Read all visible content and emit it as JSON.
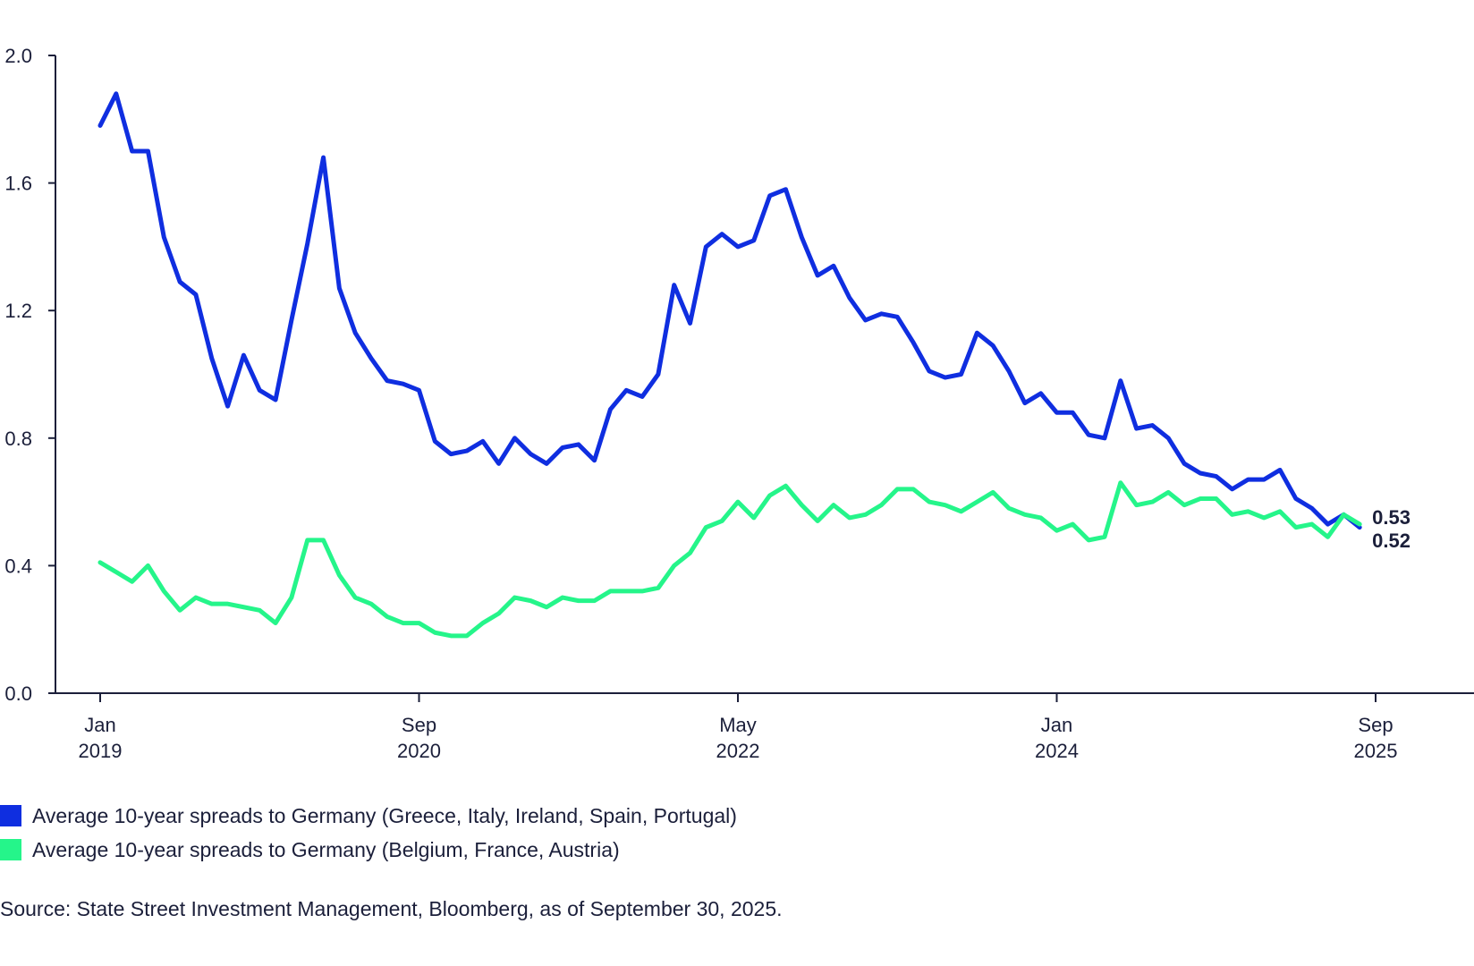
{
  "chart_data": {
    "type": "line",
    "title": "",
    "xlabel": "",
    "ylabel": "",
    "ylim": [
      0.0,
      2.0
    ],
    "xlim_months": [
      -3,
      84
    ],
    "y_ticks": [
      {
        "value": 0.0,
        "label": "0.0"
      },
      {
        "value": 0.4,
        "label": "0.4"
      },
      {
        "value": 0.8,
        "label": "0.8"
      },
      {
        "value": 1.2,
        "label": "1.2"
      },
      {
        "value": 1.6,
        "label": "1.6"
      },
      {
        "value": 2.0,
        "label": "2.0"
      }
    ],
    "x_ticks": [
      {
        "month_index": 0,
        "month": "Jan",
        "year": "2019"
      },
      {
        "month_index": 20,
        "month": "Sep",
        "year": "2020"
      },
      {
        "month_index": 40,
        "month": "May",
        "year": "2022"
      },
      {
        "month_index": 60,
        "month": "Jan",
        "year": "2024"
      },
      {
        "month_index": 80,
        "month": "Sep",
        "year": "2025"
      }
    ],
    "grid": false,
    "x_start": "Jan 2019",
    "x_step": "monthly",
    "series": [
      {
        "name": "Average 10-year spreads to Germany (Greece, Italy, Ireland, Spain, Portugal)",
        "color": "#0f2ee0",
        "end_label": "0.52",
        "values": [
          1.78,
          1.88,
          1.7,
          1.7,
          1.43,
          1.29,
          1.25,
          1.05,
          0.9,
          1.06,
          0.95,
          0.92,
          1.17,
          1.41,
          1.68,
          1.27,
          1.13,
          1.05,
          0.98,
          0.97,
          0.95,
          0.79,
          0.75,
          0.76,
          0.79,
          0.72,
          0.8,
          0.75,
          0.72,
          0.77,
          0.78,
          0.73,
          0.89,
          0.95,
          0.93,
          1.0,
          1.28,
          1.16,
          1.4,
          1.44,
          1.4,
          1.42,
          1.56,
          1.58,
          1.43,
          1.31,
          1.34,
          1.24,
          1.17,
          1.19,
          1.18,
          1.1,
          1.01,
          0.99,
          1.0,
          1.13,
          1.09,
          1.01,
          0.91,
          0.94,
          0.88,
          0.88,
          0.81,
          0.8,
          0.98,
          0.83,
          0.84,
          0.8,
          0.72,
          0.69,
          0.68,
          0.64,
          0.67,
          0.67,
          0.7,
          0.61,
          0.58,
          0.53,
          0.56,
          0.52
        ]
      },
      {
        "name": "Average 10-year spreads to Germany (Belgium, France, Austria)",
        "color": "#25f58a",
        "end_label": "0.53",
        "values": [
          0.41,
          0.38,
          0.35,
          0.4,
          0.32,
          0.26,
          0.3,
          0.28,
          0.28,
          0.27,
          0.26,
          0.22,
          0.3,
          0.48,
          0.48,
          0.37,
          0.3,
          0.28,
          0.24,
          0.22,
          0.22,
          0.19,
          0.18,
          0.18,
          0.22,
          0.25,
          0.3,
          0.29,
          0.27,
          0.3,
          0.29,
          0.29,
          0.32,
          0.32,
          0.32,
          0.33,
          0.4,
          0.44,
          0.52,
          0.54,
          0.6,
          0.55,
          0.62,
          0.65,
          0.59,
          0.54,
          0.59,
          0.55,
          0.56,
          0.59,
          0.64,
          0.64,
          0.6,
          0.59,
          0.57,
          0.6,
          0.63,
          0.58,
          0.56,
          0.55,
          0.51,
          0.53,
          0.48,
          0.49,
          0.66,
          0.59,
          0.6,
          0.63,
          0.59,
          0.61,
          0.61,
          0.56,
          0.57,
          0.55,
          0.57,
          0.52,
          0.53,
          0.49,
          0.56,
          0.53
        ]
      }
    ],
    "legend_position": "bottom-left",
    "source": "Source: State Street Investment Management, Bloomberg, as of September 30, 2025."
  }
}
